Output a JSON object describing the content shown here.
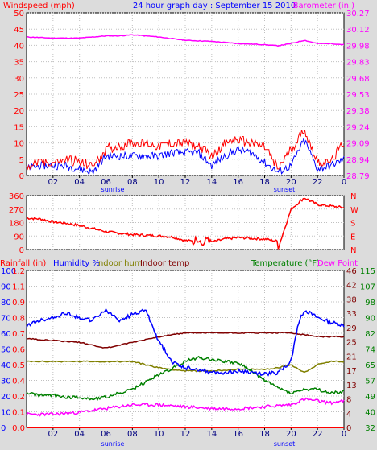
{
  "chart_data": [
    {
      "type": "line",
      "title": "24 hour graph day : September 15 2010",
      "ylabel_left": "Windspeed (mph)",
      "ylabel_right": "Barometer (in.)",
      "x_ticks": [
        "02",
        "04",
        "06",
        "08",
        "10",
        "12",
        "14",
        "16",
        "18",
        "20",
        "22",
        "0"
      ],
      "x_markers": [
        "sunrise",
        "sunset"
      ],
      "ylim_left": [
        0,
        50
      ],
      "y_ticks_left": [
        "50",
        "45",
        "40",
        "35",
        "30",
        "25",
        "20",
        "15",
        "10",
        "5",
        "0"
      ],
      "ylim_right": [
        28.79,
        30.27
      ],
      "y_ticks_right": [
        "30.27",
        "30.12",
        "29.98",
        "29.83",
        "29.68",
        "29.53",
        "29.38",
        "29.24",
        "29.09",
        "28.94",
        "28.79"
      ],
      "colors": {
        "left_label": "#ff0000",
        "title": "#0000ff",
        "right_label": "#ff00ff"
      },
      "series": [
        {
          "axis": "left",
          "color": "#ff0000",
          "hours": [
            0,
            1,
            2,
            3,
            4,
            5,
            6,
            7,
            8,
            9,
            10,
            11,
            12,
            13,
            14,
            15,
            16,
            17,
            18,
            19,
            20,
            21,
            22,
            23,
            24
          ],
          "values": [
            3,
            4,
            4,
            5,
            4,
            3,
            8,
            9,
            10,
            10,
            9,
            10,
            10,
            9,
            6,
            10,
            11,
            10,
            9,
            2,
            8,
            14,
            4,
            4,
            10
          ]
        },
        {
          "axis": "left",
          "color": "#0000ff",
          "hours": [
            0,
            1,
            2,
            3,
            4,
            5,
            6,
            7,
            8,
            9,
            10,
            11,
            12,
            13,
            14,
            15,
            16,
            17,
            18,
            19,
            20,
            21,
            22,
            23,
            24
          ],
          "values": [
            2,
            3,
            3,
            3,
            2,
            1,
            6,
            6,
            6,
            6,
            6,
            7,
            7,
            7,
            3,
            6,
            8,
            7,
            4,
            1,
            3,
            11,
            2,
            3,
            5
          ]
        },
        {
          "axis": "right",
          "color": "#ff00ff",
          "hours": [
            0,
            2,
            4,
            6,
            7,
            8,
            10,
            12,
            14,
            16,
            18,
            19,
            20,
            21,
            22,
            23,
            24
          ],
          "values": [
            30.05,
            30.04,
            30.04,
            30.06,
            30.06,
            30.07,
            30.05,
            30.02,
            30.01,
            29.99,
            29.98,
            29.97,
            29.99,
            30.02,
            29.99,
            29.99,
            29.98
          ]
        }
      ]
    },
    {
      "type": "line",
      "ylim": [
        0,
        360
      ],
      "y_ticks": [
        "360",
        "270",
        "180",
        "90",
        "0"
      ],
      "direction_labels": [
        "N",
        "W",
        "S",
        "E",
        "N"
      ],
      "series": [
        {
          "color": "#ff0000",
          "hours": [
            0,
            1,
            2,
            3,
            4,
            5,
            6,
            7,
            8,
            9,
            10,
            11,
            12,
            13,
            14,
            15,
            16,
            17,
            18,
            19,
            19.01,
            20,
            21,
            22,
            23,
            24
          ],
          "values": [
            210,
            205,
            185,
            175,
            160,
            140,
            120,
            108,
            100,
            95,
            90,
            85,
            60,
            55,
            50,
            70,
            80,
            75,
            70,
            55,
            5,
            270,
            345,
            300,
            290,
            280
          ]
        }
      ]
    },
    {
      "type": "line",
      "labels": {
        "rainfall": "Rainfall (in)",
        "humidity": "Humidity %",
        "indoor_hum": "Indoor hum",
        "indoor_temp": "Indoor temp",
        "temperature": "Temperature (°F)",
        "dew_point": "Dew Point"
      },
      "colors": {
        "rainfall": "#ff0000",
        "humidity": "#0000ff",
        "indoor_hum": "#808000",
        "indoor_temp": "#800000",
        "temperature": "#008000",
        "dew_point": "#ff00ff"
      },
      "axis_humidity_ticks": [
        "100",
        "90",
        "80",
        "70",
        "60",
        "50",
        "40",
        "30",
        "20",
        "10",
        "0"
      ],
      "axis_rainfall_ticks": [
        "1.2",
        "1.1",
        "0.9",
        "0.8",
        "0.7",
        "0.6",
        "0.5",
        "0.4",
        "0.2",
        "0.1",
        "0.0"
      ],
      "axis_celsius_ticks": [
        "46",
        "42",
        "38",
        "33",
        "29",
        "25",
        "21",
        "17",
        "13",
        "8",
        "4",
        "0"
      ],
      "axis_fahrenheit_ticks": [
        "115",
        "107",
        "98",
        "90",
        "82",
        "74",
        "65",
        "57",
        "49",
        "40",
        "32"
      ],
      "ylim_humidity": [
        0,
        100
      ],
      "ylim_fahrenheit": [
        32,
        115
      ],
      "series": [
        {
          "name": "Humidity %",
          "axis": "humidity",
          "color": "#0000ff",
          "hours": [
            0,
            1,
            2,
            3,
            4,
            5,
            6,
            7,
            8,
            9,
            10,
            11,
            12,
            13,
            14,
            15,
            16,
            17,
            18,
            19,
            20,
            20.5,
            21,
            22,
            23,
            24
          ],
          "values": [
            65,
            68,
            70,
            73,
            70,
            68,
            75,
            68,
            72,
            75,
            55,
            42,
            38,
            37,
            35,
            35,
            36,
            35,
            34,
            35,
            42,
            65,
            75,
            70,
            67,
            65
          ]
        },
        {
          "name": "Indoor hum",
          "axis": "humidity",
          "color": "#808000",
          "hours": [
            0,
            2,
            4,
            6,
            8,
            10,
            12,
            14,
            16,
            18,
            19,
            20,
            21,
            22,
            23,
            24
          ],
          "values": [
            42,
            42,
            42,
            42,
            42,
            38,
            36,
            36,
            37,
            37,
            38,
            40,
            35,
            40,
            42,
            42
          ]
        },
        {
          "name": "Indoor temp",
          "axis": "fahrenheit",
          "color": "#800000",
          "hours": [
            0,
            2,
            4,
            6,
            8,
            10,
            12,
            14,
            16,
            18,
            20,
            22,
            24
          ],
          "values": [
            79,
            78,
            77,
            74,
            77,
            80,
            82,
            82,
            82,
            82,
            82,
            80,
            80
          ]
        },
        {
          "name": "Temperature (°F)",
          "axis": "fahrenheit",
          "color": "#008000",
          "hours": [
            0,
            1,
            2,
            3,
            4,
            5,
            6,
            7,
            8,
            9,
            10,
            11,
            12,
            13,
            14,
            15,
            16,
            17,
            18,
            19,
            20,
            21,
            22,
            23,
            24
          ],
          "values": [
            50,
            49,
            49,
            48,
            48,
            47,
            48,
            50,
            52,
            56,
            60,
            63,
            67,
            69,
            68,
            67,
            66,
            62,
            57,
            53,
            50,
            52,
            52,
            50,
            51
          ]
        },
        {
          "name": "Dew Point",
          "axis": "fahrenheit",
          "color": "#ff00ff",
          "hours": [
            0,
            2,
            4,
            6,
            8,
            10,
            12,
            14,
            16,
            18,
            20,
            21,
            22,
            23,
            24
          ],
          "values": [
            39,
            39,
            40,
            42,
            44,
            44,
            43,
            42,
            42,
            43,
            44,
            47,
            46,
            45,
            46
          ]
        },
        {
          "name": "Rainfall (in)",
          "axis": "rainfall",
          "color": "#ff0000",
          "hours": [
            0,
            24
          ],
          "values": [
            0,
            0
          ]
        }
      ]
    }
  ]
}
